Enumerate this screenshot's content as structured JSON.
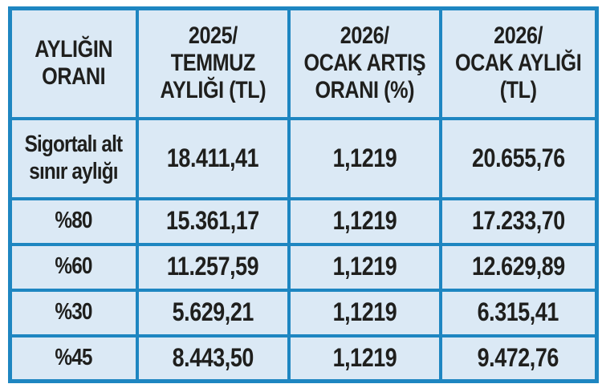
{
  "colors": {
    "border": "#1e86c1",
    "cellbg": "#dbe9f5",
    "text": "#1f1f1d",
    "page": "#ffffff"
  },
  "table": {
    "header_lines": {
      "col0": "AYLIĞIN\nORANI",
      "col1": "2025/\nTEMMUZ\nAYLIĞI (TL)",
      "col2": "2026/\nOCAK ARTIŞ\nORANI (%)",
      "col3": "2026/\nOCAK AYLIĞI\n(TL)"
    },
    "row0_label_lines": "Sigortalı alt\nsınır aylığı"
  },
  "chart_data": {
    "type": "table",
    "title": "",
    "columns": [
      "AYLIĞIN ORANI",
      "2025/ TEMMUZ AYLIĞI (TL)",
      "2026/ OCAK ARTIŞ ORANI (%)",
      "2026/ OCAK AYLIĞI (TL)"
    ],
    "rows": [
      [
        "Sigortalı alt sınır aylığı",
        "18.411,41",
        "1,1219",
        "20.655,76"
      ],
      [
        "%80",
        "15.361,17",
        "1,1219",
        "17.233,70"
      ],
      [
        "%60",
        "11.257,59",
        "1,1219",
        "12.629,89"
      ],
      [
        "%30",
        "5.629,21",
        "1,1219",
        "6.315,41"
      ],
      [
        "%45",
        "8.443,50",
        "1,1219",
        "9.472,76"
      ]
    ]
  }
}
